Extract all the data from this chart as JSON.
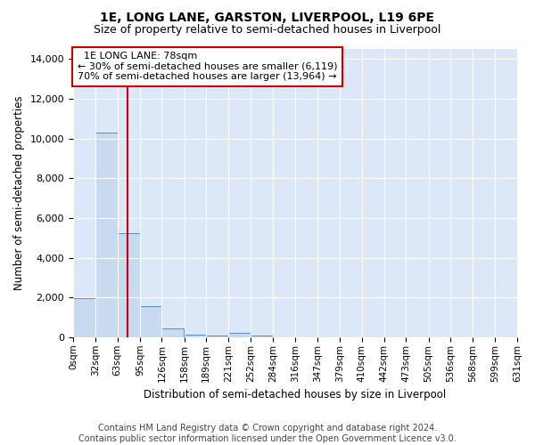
{
  "title": "1E, LONG LANE, GARSTON, LIVERPOOL, L19 6PE",
  "subtitle": "Size of property relative to semi-detached houses in Liverpool",
  "xlabel": "Distribution of semi-detached houses by size in Liverpool",
  "ylabel": "Number of semi-detached properties",
  "annotation_line1": "1E LONG LANE: 78sqm",
  "annotation_line2": "← 30% of semi-detached houses are smaller (6,119)",
  "annotation_line3": "70% of semi-detached houses are larger (13,964) →",
  "footnote1": "Contains HM Land Registry data © Crown copyright and database right 2024.",
  "footnote2": "Contains public sector information licensed under the Open Government Licence v3.0.",
  "bin_labels": [
    "0sqm",
    "32sqm",
    "63sqm",
    "95sqm",
    "126sqm",
    "158sqm",
    "189sqm",
    "221sqm",
    "252sqm",
    "284sqm",
    "316sqm",
    "347sqm",
    "379sqm",
    "410sqm",
    "442sqm",
    "473sqm",
    "505sqm",
    "536sqm",
    "568sqm",
    "599sqm",
    "631sqm"
  ],
  "bin_edges": [
    0,
    32,
    63,
    95,
    126,
    158,
    189,
    221,
    252,
    284,
    316,
    347,
    379,
    410,
    442,
    473,
    505,
    536,
    568,
    599,
    631
  ],
  "bar_values": [
    1950,
    10300,
    5250,
    1550,
    450,
    150,
    100,
    200,
    80,
    0,
    0,
    0,
    0,
    0,
    0,
    0,
    0,
    0,
    0,
    0
  ],
  "bar_color": "#c8d9f0",
  "bar_edge_color": "#5a8bbf",
  "red_line_x": 78,
  "ylim": [
    0,
    14500
  ],
  "yticks": [
    0,
    2000,
    4000,
    6000,
    8000,
    10000,
    12000,
    14000
  ],
  "background_color": "#dce8f8",
  "grid_color": "#ffffff",
  "annotation_box_facecolor": "#ffffff",
  "annotation_box_edgecolor": "#cc0000",
  "red_line_color": "#cc0000",
  "title_fontsize": 10,
  "subtitle_fontsize": 9,
  "axis_label_fontsize": 8.5,
  "ytick_fontsize": 8,
  "xtick_fontsize": 7.5,
  "annotation_fontsize": 8,
  "footnote_fontsize": 7
}
